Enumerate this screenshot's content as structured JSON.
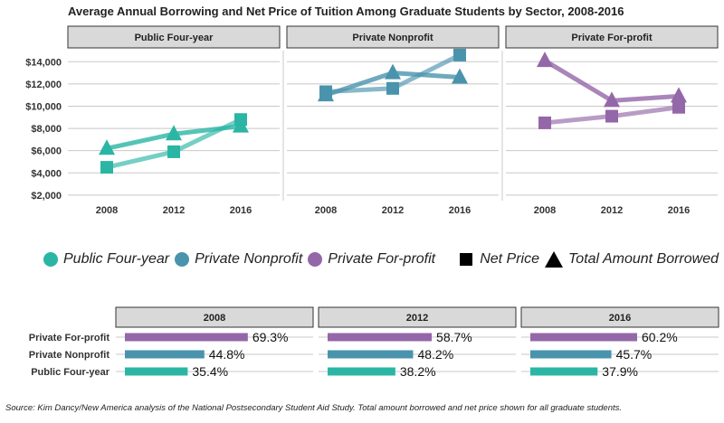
{
  "title": "Average Annual Borrowing and Net Price of Tuition Among Graduate Students by Sector, 2008-2016",
  "source_note": "Source: Kim Dancy/New America analysis of the National Postsecondary Student Aid Study. Total amount borrowed and net price shown for all graduate students.",
  "colors": {
    "Public Four-year": "#2bb5a4",
    "Private Nonprofit": "#4a93ad",
    "Private For-profit": "#9467a8"
  },
  "legend": {
    "sectors": [
      "Public Four-year",
      "Private Nonprofit",
      "Private For-profit"
    ],
    "measures": [
      "Net Price",
      "Total Amount Borrowed"
    ]
  },
  "chart_data": [
    {
      "type": "line",
      "title": "Average Annual Borrowing and Net Price of Tuition Among Graduate Students by Sector, 2008-2016",
      "panels": [
        "Public Four-year",
        "Private Nonprofit",
        "Private For-profit"
      ],
      "x": [
        "2008",
        "2012",
        "2016"
      ],
      "ylim": [
        1500,
        15000
      ],
      "yticks": [
        2000,
        4000,
        6000,
        8000,
        10000,
        12000,
        14000
      ],
      "ytick_labels": [
        "$2,000",
        "$4,000",
        "$6,000",
        "$8,000",
        "$10,000",
        "$12,000",
        "$14,000"
      ],
      "series": [
        {
          "panel": "Public Four-year",
          "measure": "Net Price",
          "values": [
            4500,
            5900,
            8800
          ]
        },
        {
          "panel": "Public Four-year",
          "measure": "Total Amount Borrowed",
          "values": [
            6200,
            7500,
            8200
          ]
        },
        {
          "panel": "Private Nonprofit",
          "measure": "Net Price",
          "values": [
            11300,
            11600,
            14600
          ]
        },
        {
          "panel": "Private Nonprofit",
          "measure": "Total Amount Borrowed",
          "values": [
            11000,
            13000,
            12600
          ]
        },
        {
          "panel": "Private For-profit",
          "measure": "Net Price",
          "values": [
            8500,
            9100,
            9900
          ]
        },
        {
          "panel": "Private For-profit",
          "measure": "Total Amount Borrowed",
          "values": [
            14100,
            10500,
            10900
          ]
        }
      ]
    },
    {
      "type": "bar",
      "orientation": "horizontal",
      "panels": [
        "2008",
        "2012",
        "2016"
      ],
      "categories": [
        "Private For-profit",
        "Private Nonprofit",
        "Public Four-year"
      ],
      "xlim": [
        0,
        100
      ],
      "series": [
        {
          "panel": "2008",
          "values": [
            69.3,
            44.8,
            35.4
          ],
          "labels": [
            "69.3%",
            "44.8%",
            "35.4%"
          ]
        },
        {
          "panel": "2012",
          "values": [
            58.7,
            48.2,
            38.2
          ],
          "labels": [
            "58.7%",
            "48.2%",
            "38.2%"
          ]
        },
        {
          "panel": "2016",
          "values": [
            60.2,
            45.7,
            37.9
          ],
          "labels": [
            "60.2%",
            "45.7%",
            "37.9%"
          ]
        }
      ]
    }
  ]
}
